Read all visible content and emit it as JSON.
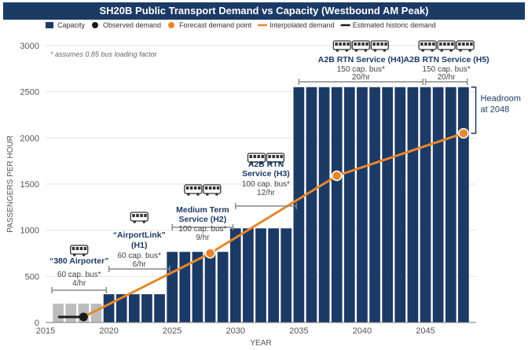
{
  "title": "SH20B Public Transport Demand vs Capacity (Westbound AM Peak)",
  "colors": {
    "capacity": "#1c3a66",
    "observed": "#1a1a1a",
    "forecast": "#e8872a",
    "historic": "#1a1a1a",
    "historic_bar": "#bdbdbd",
    "annotation": "#1c3a66",
    "bracket": "#888888"
  },
  "legend": [
    {
      "label": "Capacity",
      "kind": "box"
    },
    {
      "label": "Observed demand",
      "kind": "dot-dark"
    },
    {
      "label": "Forecast demand point",
      "kind": "dot-orange"
    },
    {
      "label": "Interpolated demand",
      "kind": "line-orange"
    },
    {
      "label": "Estimated historic demand",
      "kind": "line-dark"
    }
  ],
  "note": "* assumes 0.85 bus loading factor",
  "services": [
    {
      "name": "“380 Airporter”",
      "cap": "60 cap. bus*",
      "freq": "4/hr",
      "x0": 2015.5,
      "x1": 2019.8,
      "capacity": 204,
      "bus": "single"
    },
    {
      "name": "“AirportLink”",
      "name2": "(H1)",
      "cap": "60 cap. bus*",
      "freq": "6/hr",
      "x0": 2020,
      "x1": 2024.8,
      "capacity": 306,
      "bus": "single"
    },
    {
      "name": "Medium Term",
      "name2": "Service (H2)",
      "cap": "100 cap. bus*",
      "freq": "9/hr",
      "x0": 2025,
      "x1": 2029.8,
      "capacity": 765,
      "bus": "double"
    },
    {
      "name": "A2B RTN",
      "name2": "Service (H3)",
      "cap": "100 cap. bus*",
      "freq": "12/hr",
      "x0": 2030,
      "x1": 2034.8,
      "capacity": 1020,
      "bus": "double"
    },
    {
      "name": "A2B RTN Service (H4)",
      "cap": "150 cap. bus*",
      "freq": "20/hr",
      "x0": 2035,
      "x1": 2044.8,
      "capacity": 2550,
      "bus": "triple"
    },
    {
      "name": "A2B RTN Service (H5)",
      "cap": "150 cap. bus*",
      "freq": "20/hr",
      "x0": 2045,
      "x1": 2048.3,
      "capacity": 2550,
      "bus": "triple"
    }
  ],
  "headroom_label": [
    "Headroom",
    "at 2048"
  ],
  "chart_data": {
    "type": "bar",
    "title": "SH20B Public Transport Demand vs Capacity (Westbound AM Peak)",
    "xlabel": "YEAR",
    "ylabel": "PASSENGERS PER HOUR",
    "xlim": [
      2015,
      2049
    ],
    "ylim": [
      0,
      3000
    ],
    "xticks": [
      2015,
      2020,
      2025,
      2030,
      2035,
      2040,
      2045
    ],
    "yticks": [
      0,
      500,
      1000,
      1500,
      2000,
      2500,
      3000
    ],
    "grid": "horizontal",
    "series": [
      {
        "name": "Capacity",
        "type": "bar",
        "x": [
          2016,
          2017,
          2018,
          2019,
          2020,
          2021,
          2022,
          2023,
          2024,
          2025,
          2026,
          2027,
          2028,
          2029,
          2030,
          2031,
          2032,
          2033,
          2034,
          2035,
          2036,
          2037,
          2038,
          2039,
          2040,
          2041,
          2042,
          2043,
          2044,
          2045,
          2046,
          2047,
          2048
        ],
        "values": [
          204,
          204,
          204,
          204,
          306,
          306,
          306,
          306,
          306,
          765,
          765,
          765,
          765,
          765,
          1020,
          1020,
          1020,
          1020,
          1020,
          2550,
          2550,
          2550,
          2550,
          2550,
          2550,
          2550,
          2550,
          2550,
          2550,
          2550,
          2550,
          2550,
          2550
        ]
      },
      {
        "name": "Estimated historic demand",
        "type": "line",
        "x": [
          2016,
          2018
        ],
        "values": [
          60,
          60
        ]
      },
      {
        "name": "Observed demand",
        "type": "scatter",
        "x": [
          2018
        ],
        "values": [
          60
        ]
      },
      {
        "name": "Forecast demand point",
        "type": "scatter",
        "x": [
          2018,
          2028,
          2038,
          2048
        ],
        "values": [
          60,
          750,
          1590,
          2050
        ]
      },
      {
        "name": "Interpolated demand",
        "type": "line",
        "x": [
          2018,
          2028,
          2038,
          2048
        ],
        "values": [
          60,
          750,
          1590,
          2050
        ]
      }
    ]
  }
}
